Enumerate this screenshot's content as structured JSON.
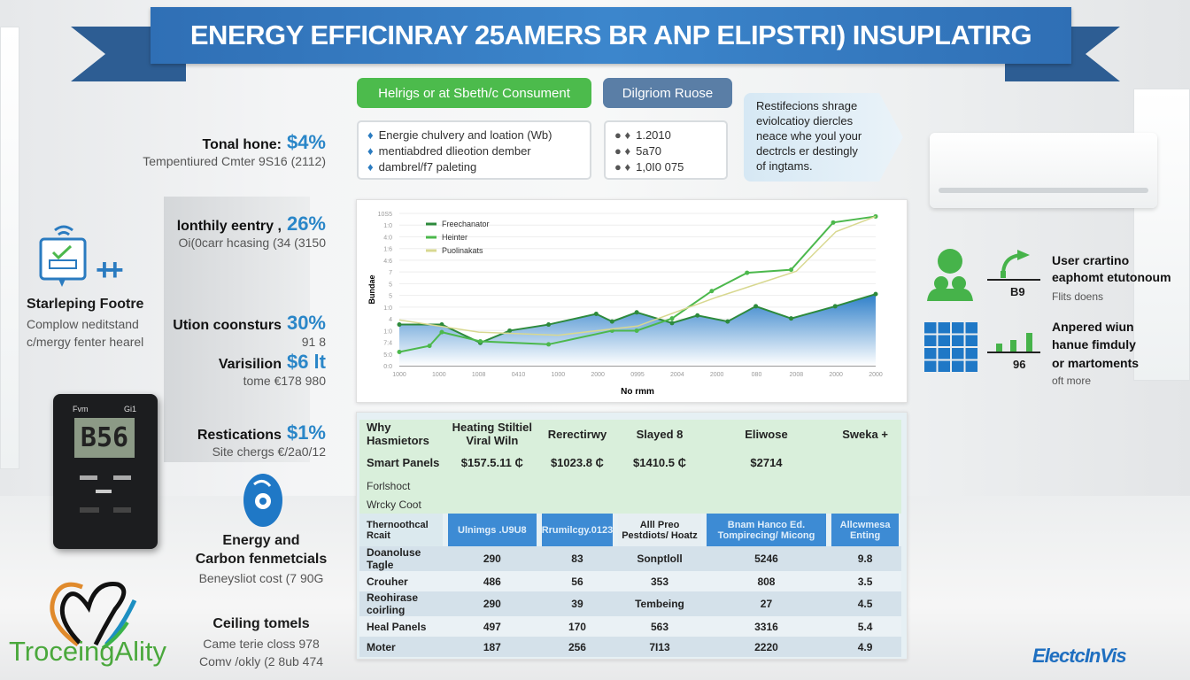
{
  "title": "ENERGY EFFICINRAY 25AMERS BR ANP ELIPSTRI) INSUPLATIRG",
  "left_stats": [
    {
      "label": "Tonal hone:",
      "value": "$4%",
      "sub": "Tempentiured Cmter 9S16 (2112)"
    },
    {
      "label": "lonthily eentry ,",
      "value": "26%",
      "sub": "Oi(0carr hcasing (34 (3150"
    },
    {
      "label": "Ution coonsturs",
      "value": "30%",
      "sub": "91 8"
    },
    {
      "label": "Varisilion",
      "value": "$6 lt",
      "sub": "tome €178 980"
    },
    {
      "label": "Restications",
      "value": "$1%",
      "sub": "Site chergs €/2a0/12"
    }
  ],
  "feature": {
    "title": "Starleping Footre",
    "lines": [
      "Complow neditstand",
      "c/mergy fenter hearel"
    ],
    "plus": "++"
  },
  "thermostat": {
    "top_left": "Fvm",
    "top_right": "Gi1",
    "reading": "B56"
  },
  "carbon": {
    "title1": "Energy and",
    "title2": "Carbon fenmetcials",
    "sub": "Beneysliot cost (7 90G"
  },
  "ceiling": {
    "title": "Ceiling tomels",
    "lines": [
      "Came terie closs 978",
      "Comv /okly (2 8ub 474"
    ]
  },
  "brand_left": "TroceingAlity",
  "pills": {
    "green": "Helrigs or at Sbeth/c Consument",
    "blue": "Dilgriom Ruose"
  },
  "box_left": [
    "Energie chulvery and loation (Wb)",
    "mentiabdred dlieotion dember",
    "dambrel/f7 paleting"
  ],
  "box_right": [
    "1.2010",
    "5a70",
    "1,0I0 075"
  ],
  "callout": [
    "Restifecions shrage",
    "eviolcatioy diercles",
    "neace whe youl your",
    "dectrcls er destingly",
    "of ingtams."
  ],
  "colors": {
    "banner": "#3479c0",
    "accent_green": "#4cbb4c",
    "accent_blue": "#2a86c8",
    "pill_blue": "#5a7ea6"
  },
  "chart_data": {
    "type": "line",
    "xlabel": "No rmm",
    "ylabel": "Bundae",
    "x_tick_labels": [
      "1000",
      "1000",
      "1008",
      "0410",
      "1000",
      "2000",
      "0995",
      "2004",
      "2000",
      "080",
      "2008",
      "2000",
      "2000"
    ],
    "y_tick_labels": [
      "10S5",
      "1:0",
      "4:0",
      "1:6",
      "4:6",
      "7",
      "5",
      "5",
      "1:0",
      "4",
      "1:0",
      "7:4",
      "5:0",
      "0:0"
    ],
    "xlim": [
      0,
      12
    ],
    "ylim": [
      0,
      100
    ],
    "legend": "top-left",
    "grid": true,
    "series": [
      {
        "name": "Freechanator",
        "style": "area",
        "color": "#2d8a3c",
        "x": [
          0,
          1.07,
          2.04,
          2.78,
          3.76,
          4.96,
          5.36,
          5.98,
          6.87,
          7.51,
          8.27,
          8.98,
          9.87,
          10.98,
          12
        ],
        "y": [
          27,
          27,
          15,
          23,
          27,
          34,
          29,
          35,
          28,
          33,
          29,
          39,
          31,
          39,
          47
        ]
      },
      {
        "name": "Heinter",
        "style": "line",
        "color": "#4cb84c",
        "x": [
          0,
          0.76,
          1.07,
          2.04,
          3.76,
          5.36,
          5.98,
          6.87,
          7.87,
          8.76,
          9.87,
          10.93,
          12
        ],
        "y": [
          9,
          13,
          22,
          16,
          14,
          23,
          23,
          31,
          49,
          61,
          63,
          94,
          98
        ]
      },
      {
        "name": "Puolinakats",
        "style": "line",
        "color": "#d8d890",
        "x": [
          0,
          2,
          4,
          6,
          8,
          10,
          11,
          12
        ],
        "y": [
          30,
          22,
          20,
          26,
          45,
          62,
          88,
          98
        ]
      }
    ]
  },
  "table": {
    "top_rows": [
      [
        "Why Hasmietors",
        "Heating Stiltiel Viral Wiln",
        "Rerectirwy",
        "Slayed 8",
        "Eliwose",
        "Sweka +"
      ],
      [
        "Smart Panels",
        "$157.5.11 ₵",
        "$1023.8 ₵",
        "$1410.5 ₵",
        "$2714",
        ""
      ]
    ],
    "note_rows": [
      "Forlshoct",
      "Wrcky Coot"
    ],
    "header": [
      "Thernoothcal Rcait",
      "Ulnimgs .U9U8",
      "Rrumilcgy.0123",
      "Alll Preo Pestdiots/ Hoatz",
      "Bnam Hanco Ed. Tompirecing/ Micong",
      "Allcwmesa Enting"
    ],
    "rows": [
      [
        "Doanoluse Tagle",
        "290",
        "83",
        "Sonptloll",
        "5246",
        "9.8"
      ],
      [
        "Crouher",
        "486",
        "56",
        "353",
        "808",
        "3.5"
      ],
      [
        "Reohirase coirling",
        "290",
        "39",
        "Tembeing",
        "27",
        "4.5"
      ],
      [
        "Heal Panels",
        "497",
        "170",
        "563",
        "3316",
        "5.4"
      ],
      [
        "Moter",
        "187",
        "256",
        "7I13",
        "2220",
        "4.9"
      ]
    ]
  },
  "right": {
    "item1": {
      "value": "B9",
      "lines": [
        "User crartino",
        "eaphomt etutonoum"
      ],
      "sub": "Flits doens"
    },
    "item2": {
      "value": "96",
      "lines": [
        "Anpered wiun",
        "hanue fimduly",
        "or martoments"
      ],
      "sub": "oft more"
    }
  },
  "brand_right": "ElectcInVis"
}
